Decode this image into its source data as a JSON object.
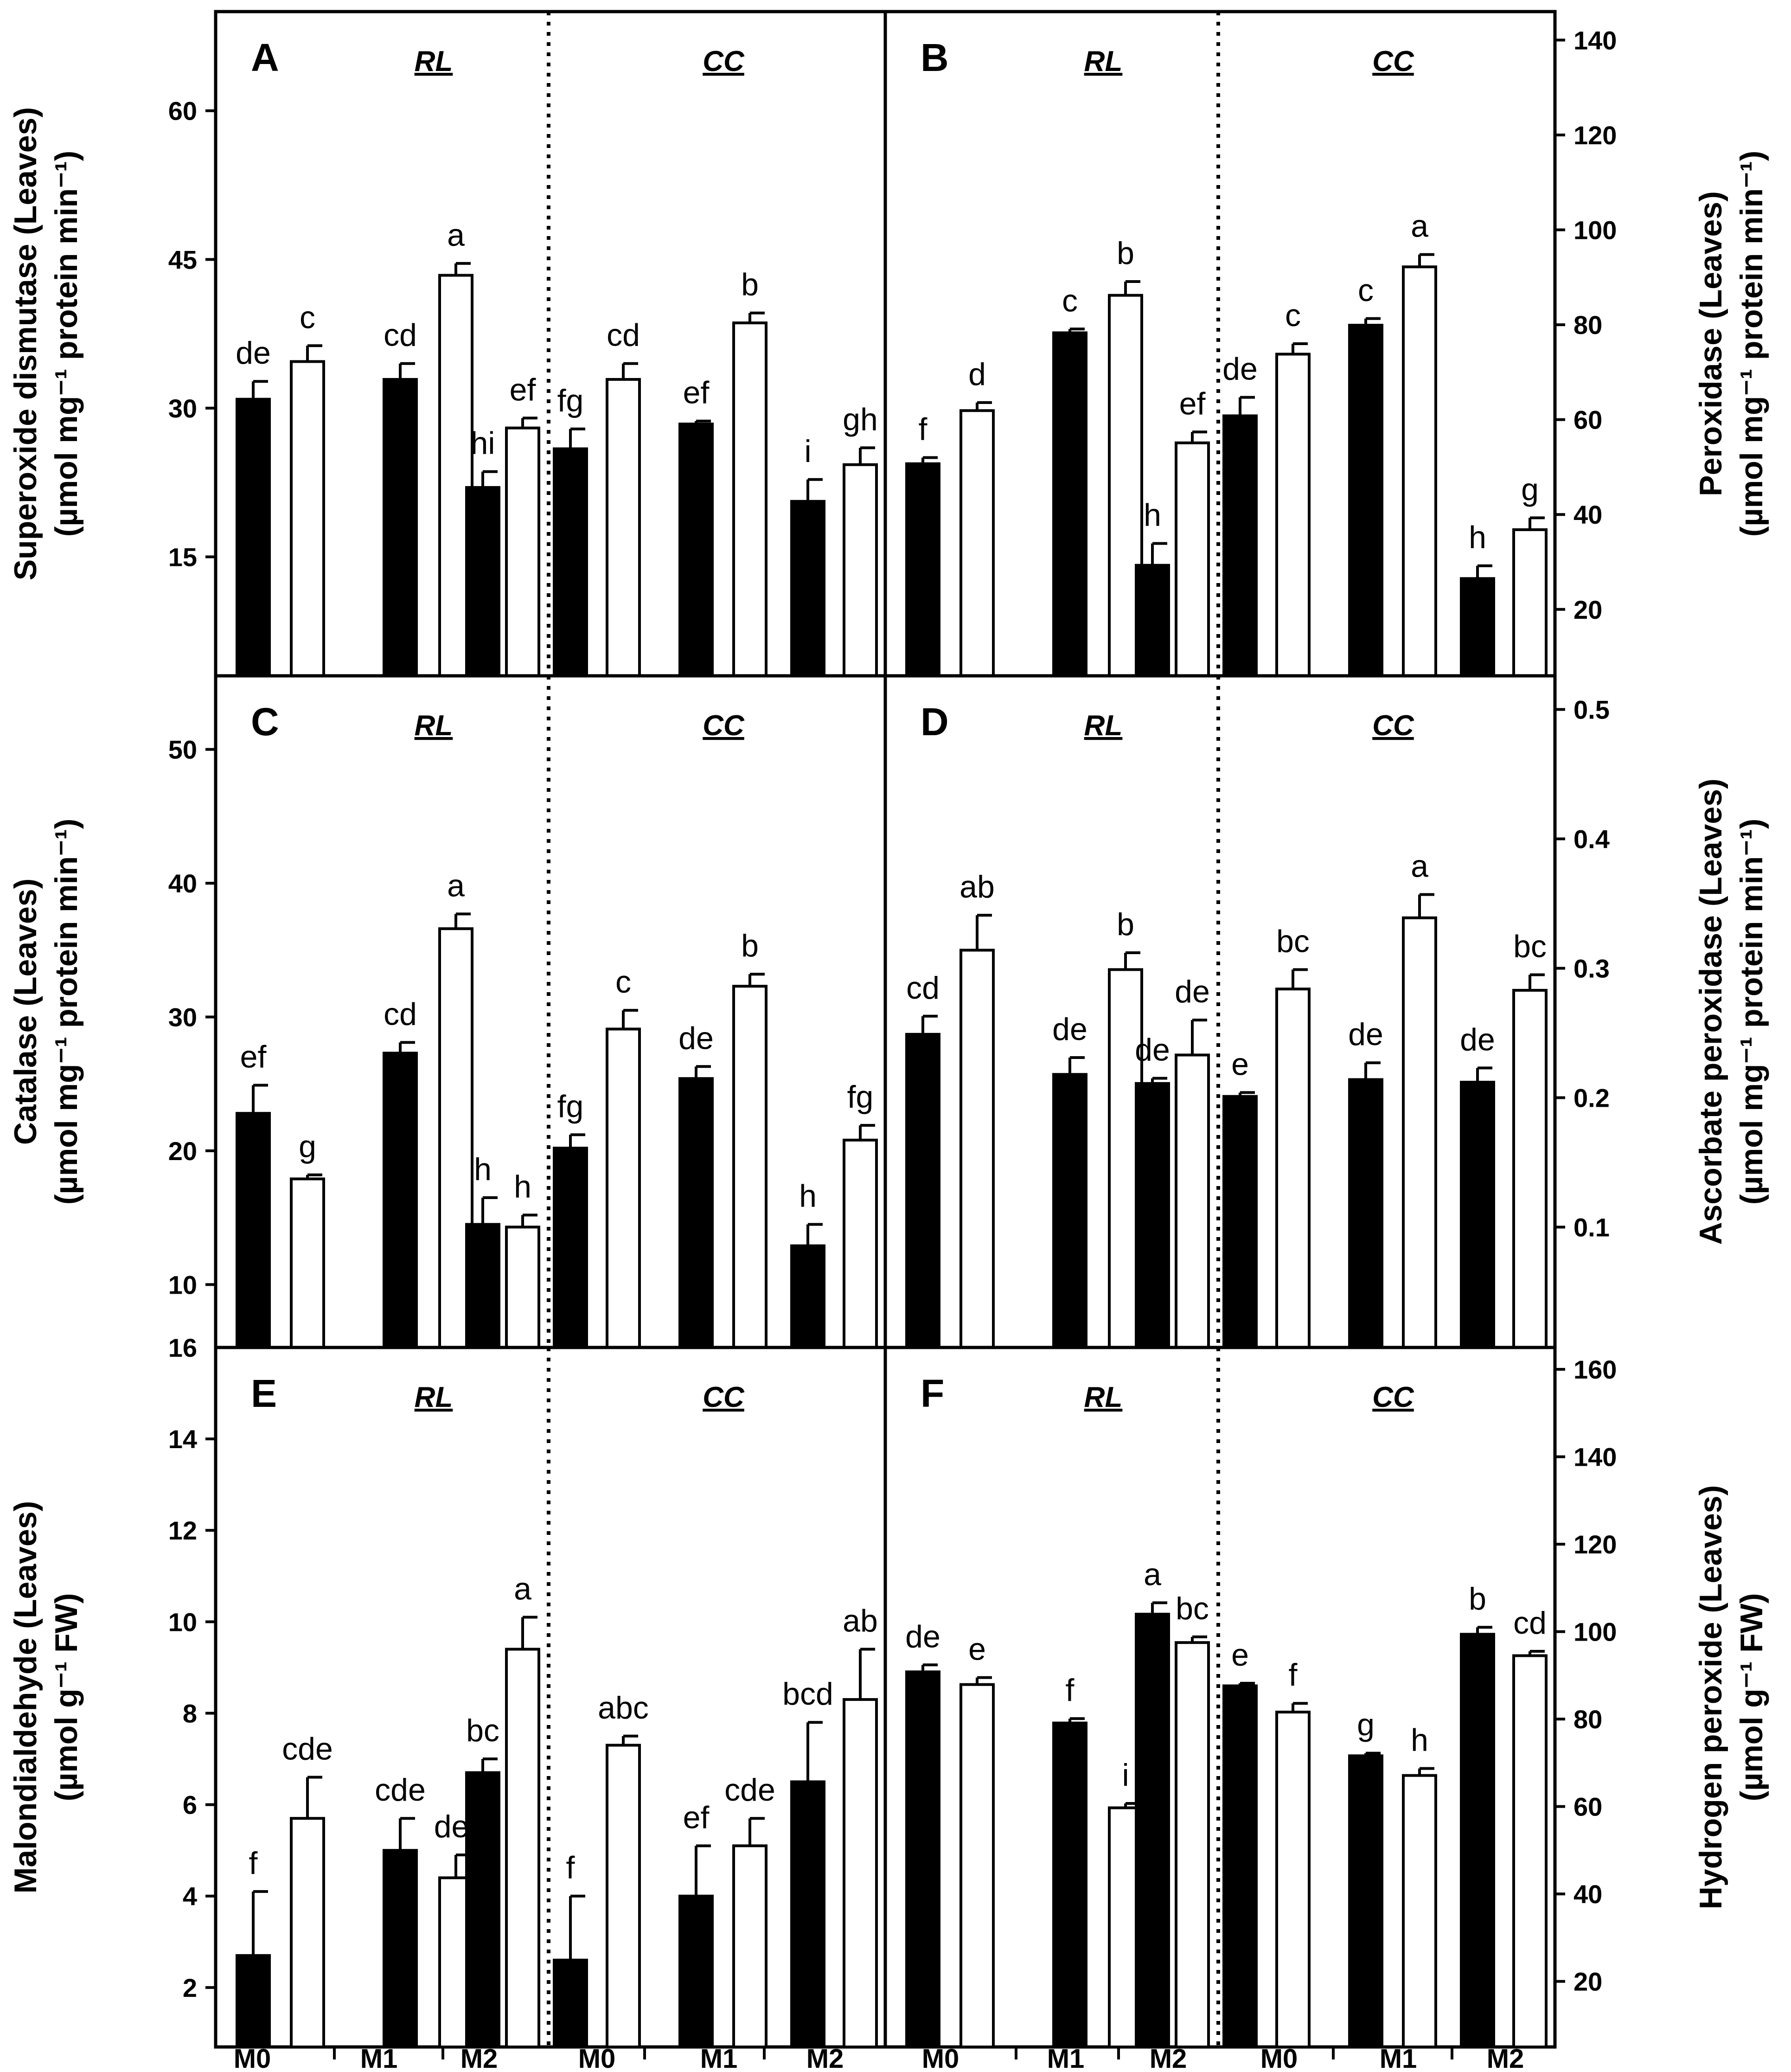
{
  "chart_data": [
    {
      "type": "bar",
      "panel": "A",
      "ylabel_line1": "Superoxide dismutase (Leaves)",
      "ylabel_line2": "(µmol mg⁻¹ protein min⁻¹)",
      "axis_side": "left",
      "ylim": [
        3,
        70
      ],
      "yticks": [
        15,
        30,
        45,
        60
      ],
      "groups": [
        "RL",
        "CC"
      ],
      "categories": [
        "M0",
        "M1",
        "M2"
      ],
      "bars": [
        {
          "group": "RL",
          "category": "M0",
          "fill": "black",
          "value": 30.9,
          "err": 1.8,
          "sig": "de"
        },
        {
          "group": "RL",
          "category": "M0",
          "fill": "white",
          "value": 34.7,
          "err": 1.6,
          "sig": "c"
        },
        {
          "group": "RL",
          "category": "M1",
          "fill": "black",
          "value": 32.9,
          "err": 1.6,
          "sig": "cd"
        },
        {
          "group": "RL",
          "category": "M1",
          "fill": "white",
          "value": 43.4,
          "err": 1.2,
          "sig": "a"
        },
        {
          "group": "RL",
          "category": "M2",
          "fill": "black",
          "value": 22.0,
          "err": 1.6,
          "sig": "hi"
        },
        {
          "group": "RL",
          "category": "M2",
          "fill": "white",
          "value": 28.0,
          "err": 1.0,
          "sig": "ef"
        },
        {
          "group": "CC",
          "category": "M0",
          "fill": "black",
          "value": 25.9,
          "err": 2.0,
          "sig": "fg"
        },
        {
          "group": "CC",
          "category": "M0",
          "fill": "white",
          "value": 32.9,
          "err": 1.6,
          "sig": "cd"
        },
        {
          "group": "CC",
          "category": "M1",
          "fill": "black",
          "value": 28.4,
          "err": 0.3,
          "sig": "ef"
        },
        {
          "group": "CC",
          "category": "M1",
          "fill": "white",
          "value": 38.6,
          "err": 1.0,
          "sig": "b"
        },
        {
          "group": "CC",
          "category": "M2",
          "fill": "black",
          "value": 20.6,
          "err": 2.2,
          "sig": "i"
        },
        {
          "group": "CC",
          "category": "M2",
          "fill": "white",
          "value": 24.3,
          "err": 1.7,
          "sig": "gh"
        }
      ]
    },
    {
      "type": "bar",
      "panel": "B",
      "ylabel_line1": "Peroxidase (Leaves)",
      "ylabel_line2": "(µmol mg⁻¹ protein min⁻¹)",
      "axis_side": "right",
      "ylim": [
        6,
        146
      ],
      "yticks": [
        20,
        40,
        60,
        80,
        100,
        120,
        140
      ],
      "groups": [
        "RL",
        "CC"
      ],
      "categories": [
        "M0",
        "M1",
        "M2"
      ],
      "bars": [
        {
          "group": "RL",
          "category": "M0",
          "fill": "black",
          "value": 50.7,
          "err": 1.3,
          "sig": "f"
        },
        {
          "group": "RL",
          "category": "M0",
          "fill": "white",
          "value": 61.9,
          "err": 1.7,
          "sig": "d"
        },
        {
          "group": "RL",
          "category": "M1",
          "fill": "black",
          "value": 78.3,
          "err": 0.8,
          "sig": "c"
        },
        {
          "group": "RL",
          "category": "M1",
          "fill": "white",
          "value": 86.2,
          "err": 2.9,
          "sig": "b"
        },
        {
          "group": "RL",
          "category": "M2",
          "fill": "black",
          "value": 29.3,
          "err": 4.6,
          "sig": "h"
        },
        {
          "group": "RL",
          "category": "M2",
          "fill": "white",
          "value": 55.1,
          "err": 2.3,
          "sig": "ef"
        },
        {
          "group": "CC",
          "category": "M0",
          "fill": "black",
          "value": 60.8,
          "err": 3.9,
          "sig": "de"
        },
        {
          "group": "CC",
          "category": "M0",
          "fill": "white",
          "value": 73.8,
          "err": 2.2,
          "sig": "c"
        },
        {
          "group": "CC",
          "category": "M1",
          "fill": "black",
          "value": 79.9,
          "err": 1.4,
          "sig": "c"
        },
        {
          "group": "CC",
          "category": "M1",
          "fill": "white",
          "value": 92.2,
          "err": 2.6,
          "sig": "a"
        },
        {
          "group": "CC",
          "category": "M2",
          "fill": "black",
          "value": 26.5,
          "err": 2.7,
          "sig": "h"
        },
        {
          "group": "CC",
          "category": "M2",
          "fill": "white",
          "value": 36.8,
          "err": 2.5,
          "sig": "g"
        }
      ]
    },
    {
      "type": "bar",
      "panel": "C",
      "ylabel_line1": "Catalase (Leaves)",
      "ylabel_line2": "(µmol mg⁻¹ protein min⁻¹)",
      "axis_side": "left",
      "ylim": [
        5.3,
        55.5
      ],
      "yticks": [
        10,
        20,
        30,
        40,
        50
      ],
      "groups": [
        "RL",
        "CC"
      ],
      "categories": [
        "M0",
        "M1",
        "M2"
      ],
      "bars": [
        {
          "group": "RL",
          "category": "M0",
          "fill": "black",
          "value": 22.8,
          "err": 2.1,
          "sig": "ef"
        },
        {
          "group": "RL",
          "category": "M0",
          "fill": "white",
          "value": 17.9,
          "err": 0.3,
          "sig": "g"
        },
        {
          "group": "RL",
          "category": "M1",
          "fill": "black",
          "value": 27.3,
          "err": 0.8,
          "sig": "cd"
        },
        {
          "group": "RL",
          "category": "M1",
          "fill": "white",
          "value": 36.6,
          "err": 1.1,
          "sig": "a"
        },
        {
          "group": "RL",
          "category": "M2",
          "fill": "black",
          "value": 14.5,
          "err": 2.0,
          "sig": "h"
        },
        {
          "group": "RL",
          "category": "M2",
          "fill": "white",
          "value": 14.3,
          "err": 0.9,
          "sig": "h"
        },
        {
          "group": "CC",
          "category": "M0",
          "fill": "black",
          "value": 20.2,
          "err": 1.0,
          "sig": "fg"
        },
        {
          "group": "CC",
          "category": "M0",
          "fill": "white",
          "value": 29.1,
          "err": 1.4,
          "sig": "c"
        },
        {
          "group": "CC",
          "category": "M1",
          "fill": "black",
          "value": 25.4,
          "err": 0.9,
          "sig": "de"
        },
        {
          "group": "CC",
          "category": "M1",
          "fill": "white",
          "value": 32.3,
          "err": 0.9,
          "sig": "b"
        },
        {
          "group": "CC",
          "category": "M2",
          "fill": "black",
          "value": 12.9,
          "err": 1.6,
          "sig": "h"
        },
        {
          "group": "CC",
          "category": "M2",
          "fill": "white",
          "value": 20.8,
          "err": 1.1,
          "sig": "fg"
        }
      ]
    },
    {
      "type": "bar",
      "panel": "D",
      "ylabel_line1": "Ascorbate peroxidase (Leaves)",
      "ylabel_line2": "(µmol mg⁻¹ protein min⁻¹)",
      "axis_side": "right",
      "ylim": [
        0.007,
        0.526
      ],
      "yticks": [
        0.1,
        0.2,
        0.3,
        0.4,
        0.5
      ],
      "groups": [
        "RL",
        "CC"
      ],
      "categories": [
        "M0",
        "M1",
        "M2"
      ],
      "bars": [
        {
          "group": "RL",
          "category": "M0",
          "fill": "black",
          "value": 0.249,
          "err": 0.014,
          "sig": "cd"
        },
        {
          "group": "RL",
          "category": "M0",
          "fill": "white",
          "value": 0.314,
          "err": 0.027,
          "sig": "ab"
        },
        {
          "group": "RL",
          "category": "M1",
          "fill": "black",
          "value": 0.218,
          "err": 0.013,
          "sig": "de"
        },
        {
          "group": "RL",
          "category": "M1",
          "fill": "white",
          "value": 0.299,
          "err": 0.013,
          "sig": "b"
        },
        {
          "group": "RL",
          "category": "M2",
          "fill": "black",
          "value": 0.211,
          "err": 0.004,
          "sig": "de"
        },
        {
          "group": "RL",
          "category": "M2",
          "fill": "white",
          "value": 0.233,
          "err": 0.027,
          "sig": "de"
        },
        {
          "group": "CC",
          "category": "M0",
          "fill": "black",
          "value": 0.201,
          "err": 0.003,
          "sig": "e"
        },
        {
          "group": "CC",
          "category": "M0",
          "fill": "white",
          "value": 0.284,
          "err": 0.015,
          "sig": "bc"
        },
        {
          "group": "CC",
          "category": "M1",
          "fill": "black",
          "value": 0.214,
          "err": 0.013,
          "sig": "de"
        },
        {
          "group": "CC",
          "category": "M1",
          "fill": "white",
          "value": 0.339,
          "err": 0.018,
          "sig": "a"
        },
        {
          "group": "CC",
          "category": "M2",
          "fill": "black",
          "value": 0.212,
          "err": 0.011,
          "sig": "de"
        },
        {
          "group": "CC",
          "category": "M2",
          "fill": "white",
          "value": 0.283,
          "err": 0.012,
          "sig": "bc"
        }
      ]
    },
    {
      "type": "bar",
      "panel": "E",
      "ylabel_line1": "Malondialdehyde (Leaves)",
      "ylabel_line2": "(µmol g⁻¹ FW)",
      "axis_side": "left",
      "ylim": [
        0.7,
        16
      ],
      "yticks": [
        2,
        4,
        6,
        8,
        10,
        12,
        14
      ],
      "top_label": "16",
      "groups": [
        "RL",
        "CC"
      ],
      "categories": [
        "M0",
        "M1",
        "M2"
      ],
      "bars": [
        {
          "group": "RL",
          "category": "M0",
          "fill": "black",
          "value": 2.7,
          "err": 1.4,
          "sig": "f"
        },
        {
          "group": "RL",
          "category": "M0",
          "fill": "white",
          "value": 5.7,
          "err": 0.9,
          "sig": "cde"
        },
        {
          "group": "RL",
          "category": "M1",
          "fill": "black",
          "value": 5.0,
          "err": 0.7,
          "sig": "cde"
        },
        {
          "group": "RL",
          "category": "M1",
          "fill": "white",
          "value": 4.4,
          "err": 0.5,
          "sig": "def"
        },
        {
          "group": "RL",
          "category": "M2",
          "fill": "black",
          "value": 6.7,
          "err": 0.3,
          "sig": "bc"
        },
        {
          "group": "RL",
          "category": "M2",
          "fill": "white",
          "value": 9.4,
          "err": 0.7,
          "sig": "a"
        },
        {
          "group": "CC",
          "category": "M0",
          "fill": "black",
          "value": 2.6,
          "err": 1.4,
          "sig": "f"
        },
        {
          "group": "CC",
          "category": "M0",
          "fill": "white",
          "value": 7.3,
          "err": 0.2,
          "sig": "abc"
        },
        {
          "group": "CC",
          "category": "M1",
          "fill": "black",
          "value": 4.0,
          "err": 1.1,
          "sig": "ef"
        },
        {
          "group": "CC",
          "category": "M1",
          "fill": "white",
          "value": 5.1,
          "err": 0.6,
          "sig": "cde"
        },
        {
          "group": "CC",
          "category": "M2",
          "fill": "black",
          "value": 6.5,
          "err": 1.3,
          "sig": "bcd"
        },
        {
          "group": "CC",
          "category": "M2",
          "fill": "white",
          "value": 8.3,
          "err": 1.1,
          "sig": "ab"
        }
      ]
    },
    {
      "type": "bar",
      "panel": "F",
      "ylabel_line1": "Hydrogen peroxide (Leaves)",
      "ylabel_line2": "(µmol g⁻¹ FW)",
      "axis_side": "right",
      "ylim": [
        5,
        165
      ],
      "yticks": [
        20,
        40,
        60,
        80,
        100,
        120,
        140,
        160
      ],
      "groups": [
        "RL",
        "CC"
      ],
      "categories": [
        "M0",
        "M1",
        "M2"
      ],
      "bars": [
        {
          "group": "RL",
          "category": "M0",
          "fill": "black",
          "value": 90.8,
          "err": 1.6,
          "sig": "de"
        },
        {
          "group": "RL",
          "category": "M0",
          "fill": "white",
          "value": 87.9,
          "err": 1.6,
          "sig": "e"
        },
        {
          "group": "RL",
          "category": "M1",
          "fill": "black",
          "value": 79.1,
          "err": 1.0,
          "sig": "f"
        },
        {
          "group": "RL",
          "category": "M1",
          "fill": "white",
          "value": 59.7,
          "err": 1.0,
          "sig": "i"
        },
        {
          "group": "RL",
          "category": "M2",
          "fill": "black",
          "value": 104.0,
          "err": 2.6,
          "sig": "a"
        },
        {
          "group": "RL",
          "category": "M2",
          "fill": "white",
          "value": 97.5,
          "err": 1.3,
          "sig": "bc"
        },
        {
          "group": "CC",
          "category": "M0",
          "fill": "black",
          "value": 87.6,
          "err": 0.6,
          "sig": "e"
        },
        {
          "group": "CC",
          "category": "M0",
          "fill": "white",
          "value": 81.6,
          "err": 2.0,
          "sig": "f"
        },
        {
          "group": "CC",
          "category": "M1",
          "fill": "black",
          "value": 71.6,
          "err": 0.6,
          "sig": "g"
        },
        {
          "group": "CC",
          "category": "M1",
          "fill": "white",
          "value": 67.1,
          "err": 1.6,
          "sig": "h"
        },
        {
          "group": "CC",
          "category": "M2",
          "fill": "black",
          "value": 99.4,
          "err": 1.6,
          "sig": "b"
        },
        {
          "group": "CC",
          "category": "M2",
          "fill": "white",
          "value": 94.5,
          "err": 1.0,
          "sig": "cd"
        }
      ]
    }
  ],
  "x_category_labels": [
    "M0",
    "M1",
    "M2",
    "M0",
    "M1",
    "M2"
  ],
  "colors": {
    "ink": "#000000",
    "paper": "#ffffff"
  }
}
